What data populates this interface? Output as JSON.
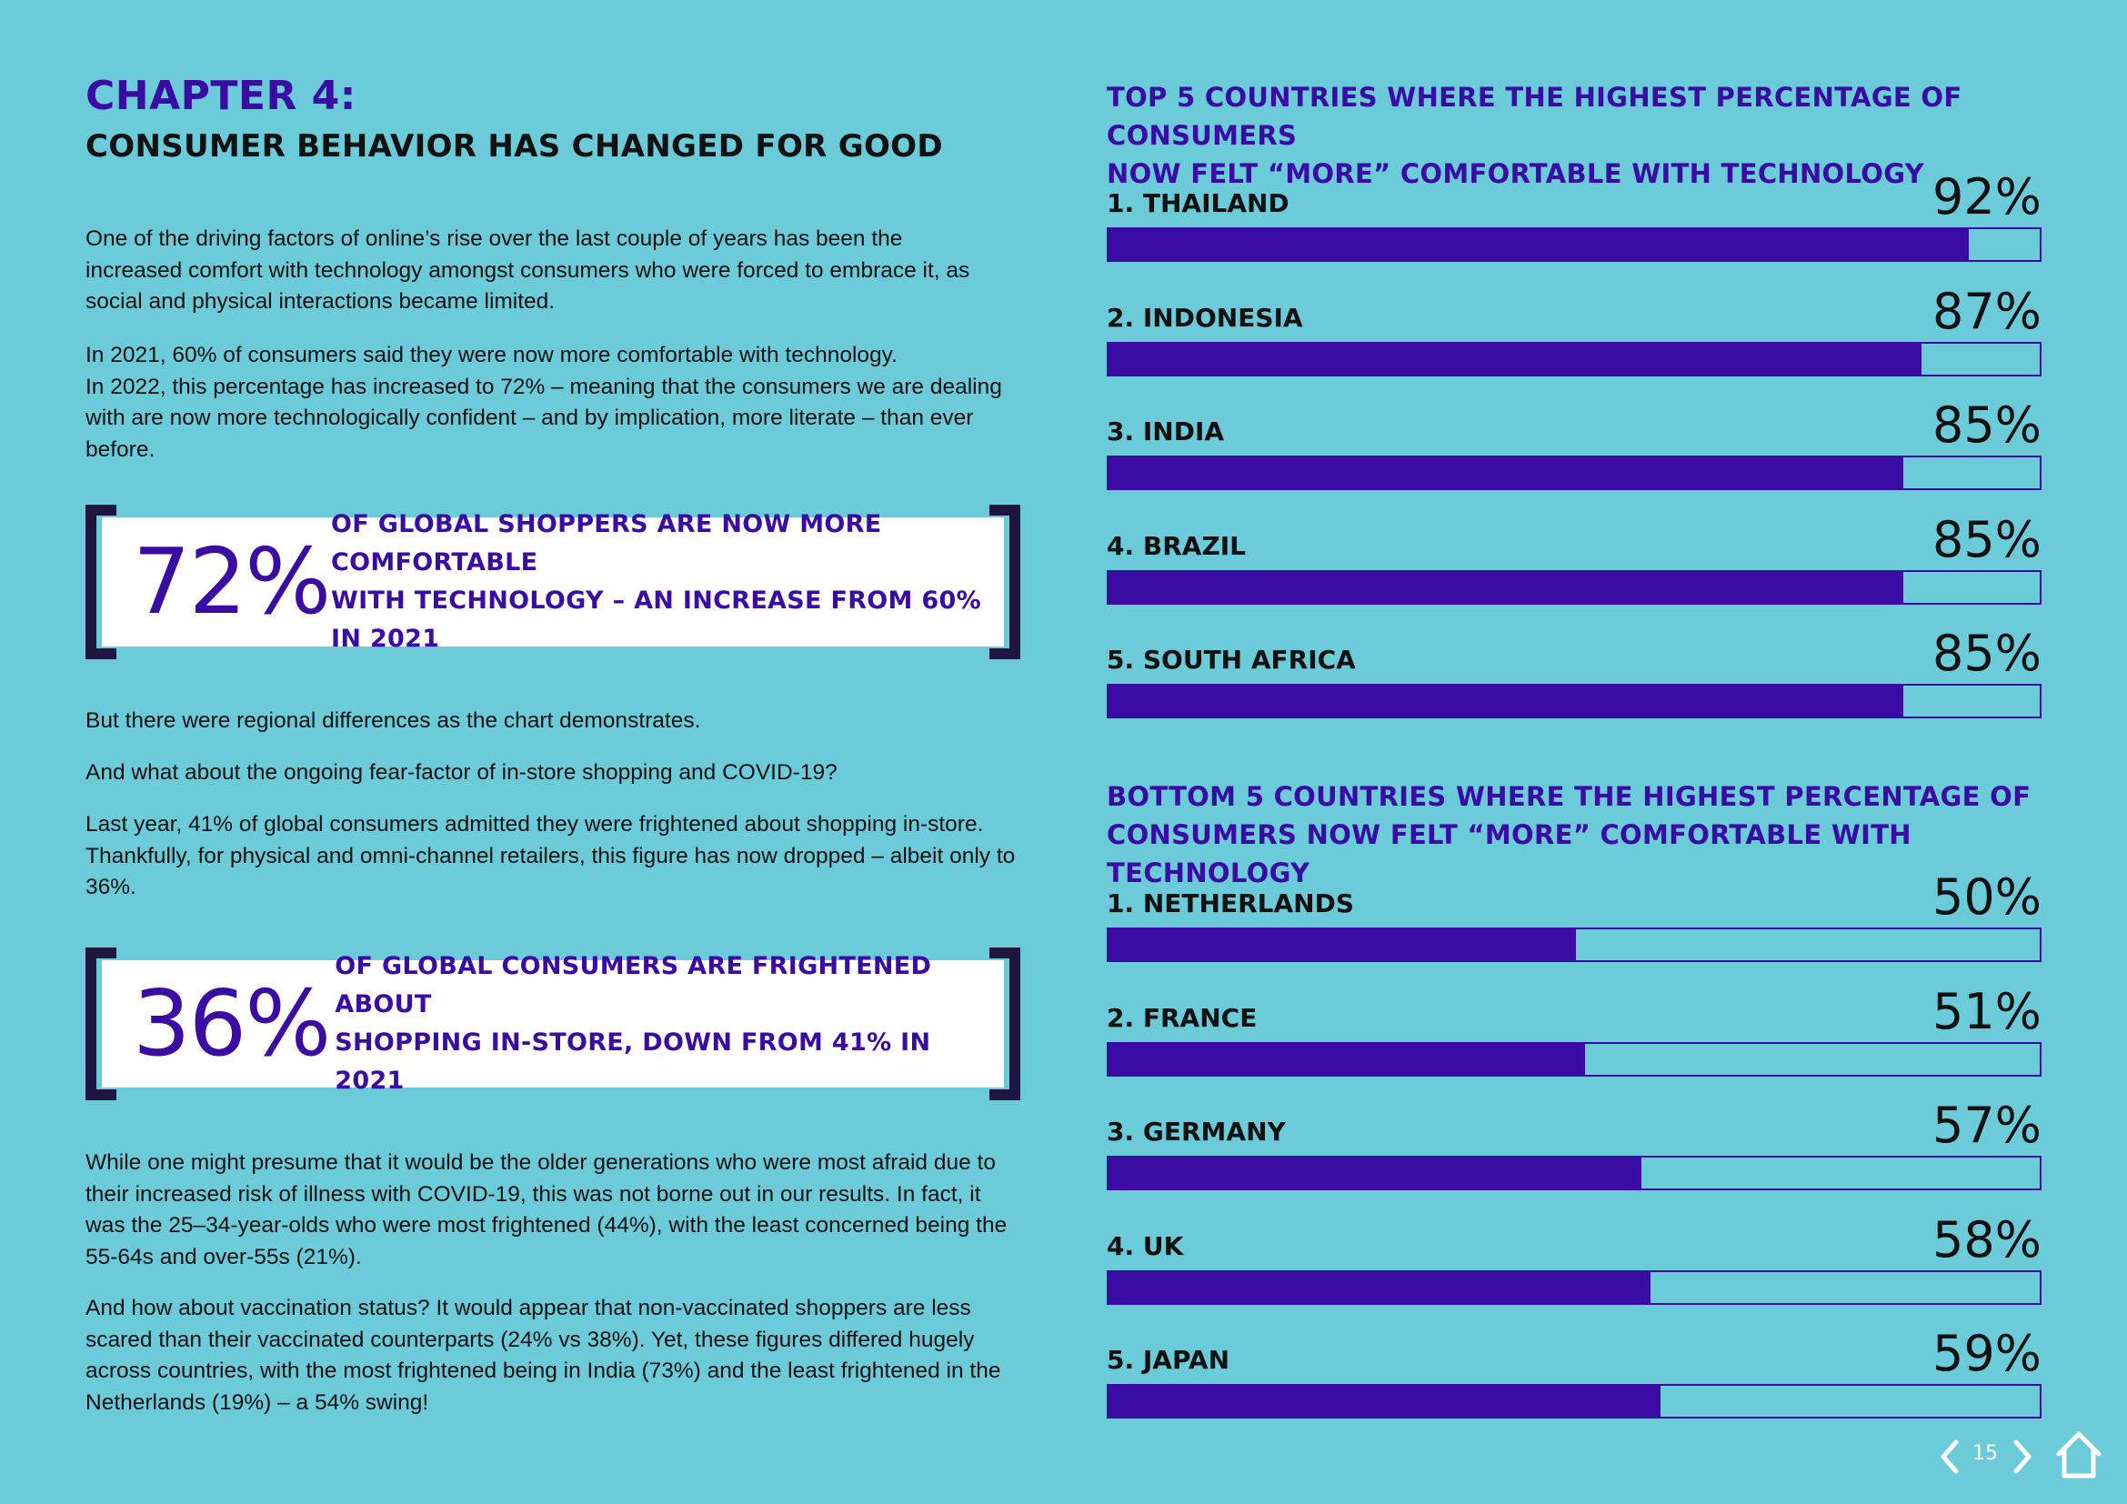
{
  "left": {
    "chapter": "CHAPTER 4:",
    "subtitle": "CONSUMER BEHAVIOR HAS CHANGED FOR GOOD",
    "para1": "One of the driving factors of online’s rise over the last couple of years has been the increased comfort with technology amongst consumers who were forced to embrace it, as social and physical interactions became limited.",
    "para2a": "In 2021, 60% of consumers said they were now more comfortable with technology.",
    "para2b": "In 2022, this percentage has increased to 72% – meaning that the consumers we are dealing with are now more technologically confident – and by implication, more literate – than ever before.",
    "callout1": {
      "big": "72%",
      "line1": "OF GLOBAL SHOPPERS ARE NOW MORE COMFORTABLE",
      "line2": "WITH TECHNOLOGY – AN INCREASE FROM 60% IN 2021"
    },
    "para3": "But there were regional differences as the chart demonstrates.",
    "para4": "And what about the ongoing fear-factor of in-store shopping and COVID-19?",
    "para5": "Last year, 41% of global consumers admitted they were frightened about shopping in-store. Thankfully, for physical and omni-channel retailers, this figure has now dropped – albeit only to 36%.",
    "callout2": {
      "big": "36%",
      "line1": "OF GLOBAL CONSUMERS ARE FRIGHTENED ABOUT",
      "line2": "SHOPPING IN-STORE, DOWN FROM 41% IN 2021"
    },
    "para6": "While one might presume that it would be the older generations who were most afraid due to their increased risk of illness with COVID-19, this was not borne out in our results. In fact, it was the 25–34-year-olds who were most frightened (44%), with the least concerned being the 55-64s and over-55s (21%).",
    "para7": "And how about vaccination status? It would appear that non-vaccinated shoppers are less scared than their vaccinated counterparts (24% vs 38%). Yet, these figures differed hugely across countries, with the most frightened being in India (73%) and the least frightened in the Netherlands (19%) – a 54% swing!"
  },
  "colors": {
    "background": "#6ccbd9",
    "accent": "#3a0ca3",
    "bracket": "#1e1540"
  },
  "chart_data": [
    {
      "type": "bar",
      "title": "TOP 5 COUNTRIES WHERE THE HIGHEST PERCENTAGE OF CONSUMERS NOW FELT “MORE” COMFORTABLE WITH TECHNOLOGY",
      "title_lines": [
        "TOP 5 COUNTRIES WHERE THE HIGHEST PERCENTAGE OF CONSUMERS",
        "NOW FELT “MORE” COMFORTABLE WITH TECHNOLOGY"
      ],
      "categories": [
        "1. THAILAND",
        "2. INDONESIA",
        "3. INDIA",
        "4. BRAZIL",
        "5. SOUTH AFRICA"
      ],
      "values": [
        92,
        87,
        85,
        85,
        85
      ],
      "value_labels": [
        "92%",
        "87%",
        "85%",
        "85%",
        "85%"
      ],
      "orientation": "horizontal",
      "xlim": [
        0,
        100
      ]
    },
    {
      "type": "bar",
      "title": "BOTTOM 5 COUNTRIES WHERE THE HIGHEST PERCENTAGE OF CONSUMERS NOW FELT “MORE” COMFORTABLE WITH TECHNOLOGY",
      "title_lines": [
        "BOTTOM 5 COUNTRIES WHERE THE HIGHEST PERCENTAGE OF",
        "CONSUMERS NOW FELT “MORE” COMFORTABLE WITH TECHNOLOGY"
      ],
      "categories": [
        "1. NETHERLANDS",
        "2. FRANCE",
        "3. GERMANY",
        "4. UK",
        "5. JAPAN"
      ],
      "values": [
        50,
        51,
        57,
        58,
        59
      ],
      "value_labels": [
        "50%",
        "51%",
        "57%",
        "58%",
        "59%"
      ],
      "orientation": "horizontal",
      "xlim": [
        0,
        100
      ]
    }
  ],
  "nav": {
    "page_number": "15",
    "prev_icon": "chevron-left-icon",
    "next_icon": "chevron-right-icon",
    "home_icon": "home-icon"
  }
}
